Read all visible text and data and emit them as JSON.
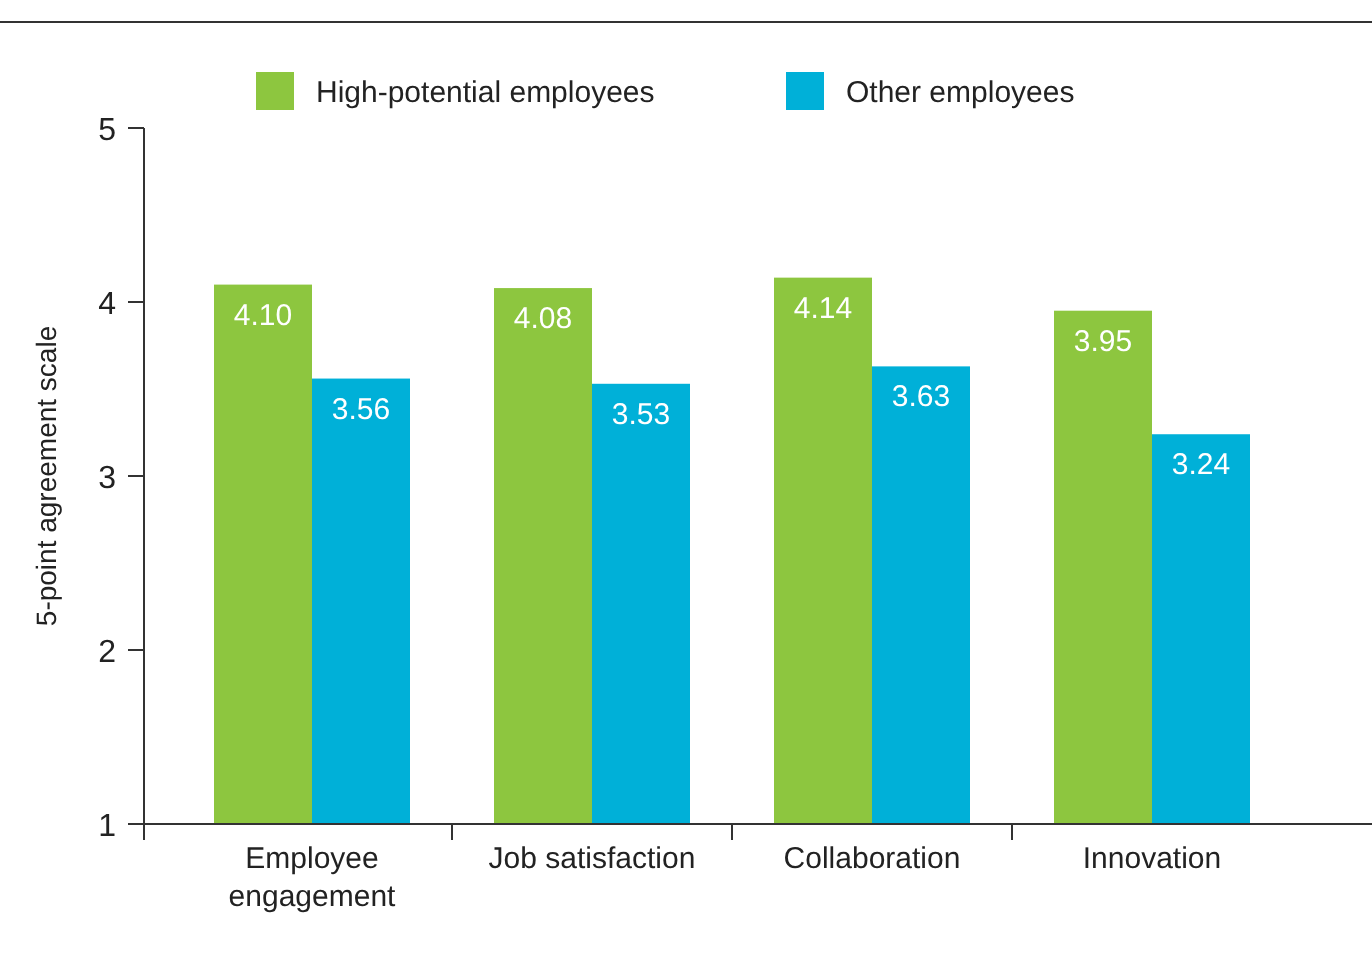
{
  "chart_data": {
    "type": "bar",
    "categories": [
      "Employee engagement",
      "Job satisfaction",
      "Collaboration",
      "Innovation"
    ],
    "series": [
      {
        "name": "High-potential employees",
        "color": "#8dc63f",
        "values": [
          4.1,
          4.08,
          4.14,
          3.95
        ],
        "value_labels": [
          "4.10",
          "4.08",
          "4.14",
          "3.95"
        ]
      },
      {
        "name": "Other employees",
        "color": "#00b0d8",
        "values": [
          3.56,
          3.53,
          3.63,
          3.24
        ],
        "value_labels": [
          "3.56",
          "3.53",
          "3.63",
          "3.24"
        ]
      }
    ],
    "ylabel": "5-point agreement scale",
    "ylim": [
      1,
      5
    ],
    "yticks": [
      1,
      2,
      3,
      4,
      5
    ],
    "grid": false,
    "legend": "top"
  }
}
